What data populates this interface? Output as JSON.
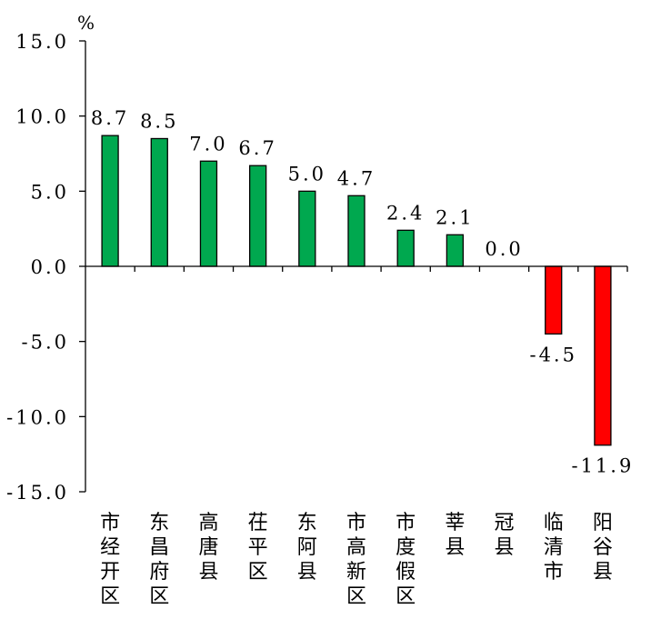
{
  "chart_data": {
    "type": "bar",
    "unit": "%",
    "categories": [
      "市经开区",
      "东昌府区",
      "高唐县",
      "茌平区",
      "东阿县",
      "市高新区",
      "市度假区",
      "莘县",
      "冠县",
      "临清市",
      "阳谷县"
    ],
    "values": [
      8.7,
      8.5,
      7.0,
      6.7,
      5.0,
      4.7,
      2.4,
      2.1,
      0.0,
      -4.5,
      -11.9
    ],
    "data_labels": [
      "8.7",
      "8.5",
      "7.0",
      "6.7",
      "5.0",
      "4.7",
      "2.4",
      "2.1",
      "0.0",
      "-4.5",
      "-11.9"
    ],
    "ylim": [
      -15,
      15
    ],
    "yticks": [
      15,
      10,
      5,
      0,
      -5,
      -10,
      -15
    ],
    "ytick_labels": [
      "15.0",
      "10.0",
      "5.0",
      "0.0",
      "-5.0",
      "-10.0",
      "-15.0"
    ],
    "colors": {
      "positive": "#00a84f",
      "negative": "#ff0000",
      "border": "#000000"
    },
    "grid": false,
    "legend": "none"
  }
}
